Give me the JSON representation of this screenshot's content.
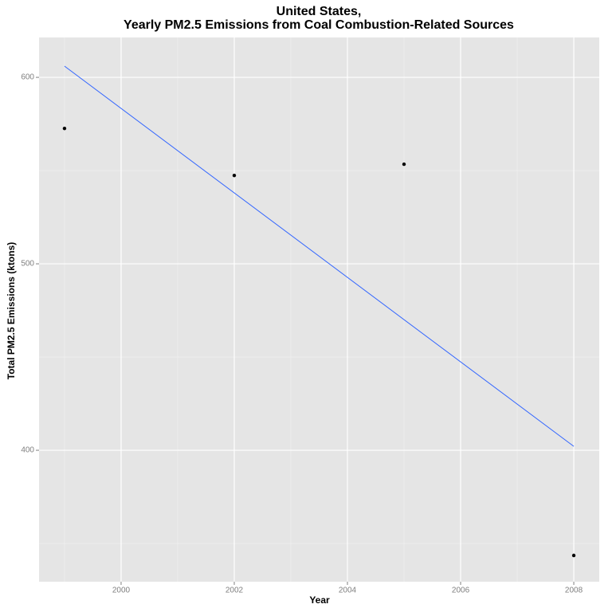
{
  "chart_data": {
    "type": "scatter",
    "title": [
      "United States,",
      "Yearly PM2.5 Emissions from Coal Combustion-Related Sources"
    ],
    "x_label": "Year",
    "y_label": "Total PM2.5 Emissions (ktons)",
    "points": {
      "x": [
        1999,
        2002,
        2005,
        2008
      ],
      "values": [
        572.6,
        547.4,
        553.4,
        343.6
      ],
      "color": "#000000"
    },
    "fit": {
      "x": [
        1999,
        2008
      ],
      "values": [
        606,
        402.1
      ],
      "color": "#3366ff"
    },
    "xlim": [
      1998.55,
      2008.45
    ],
    "ylim": [
      329.5,
      621.4
    ],
    "xticks": [
      2000,
      2002,
      2004,
      2006,
      2008
    ],
    "yticks": [
      400,
      500,
      600
    ],
    "x_minor_ticks": [
      1999,
      2001,
      2003,
      2005,
      2007
    ],
    "y_minor_ticks": [
      350,
      450,
      550
    ],
    "grid": true
  }
}
